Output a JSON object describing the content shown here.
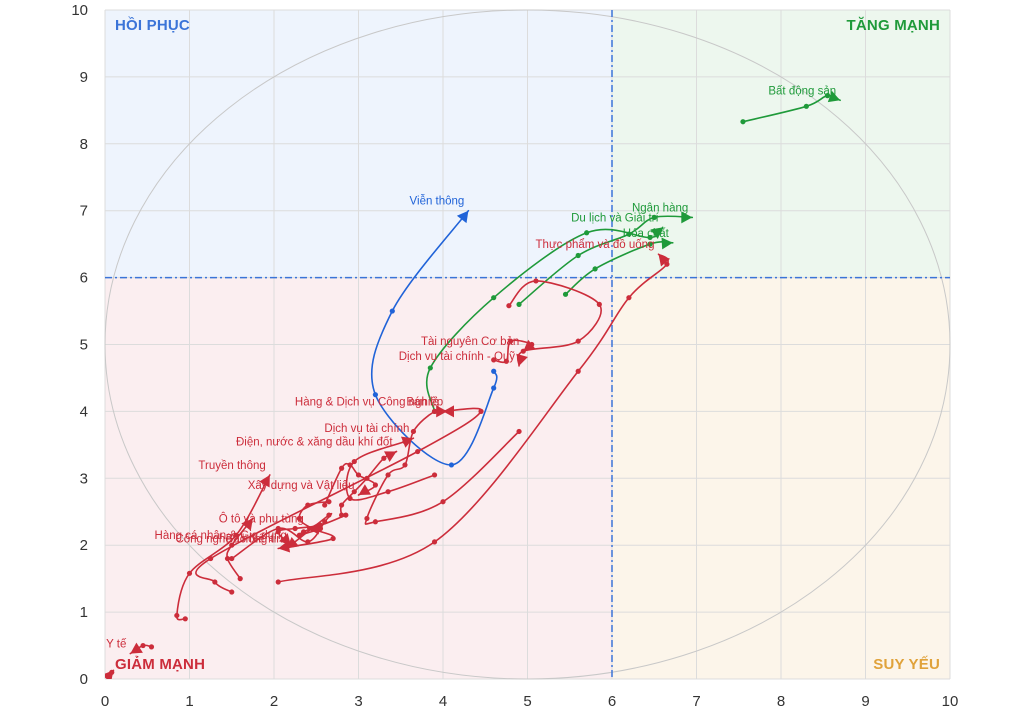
{
  "chart_data": {
    "type": "line",
    "xlim": [
      0,
      10
    ],
    "ylim": [
      0,
      10
    ],
    "x_ticks": [
      "0",
      "1",
      "2",
      "3",
      "4",
      "5",
      "6",
      "7",
      "8",
      "9",
      "10"
    ],
    "y_ticks": [
      "0",
      "1",
      "2",
      "3",
      "4",
      "5",
      "6",
      "7",
      "8",
      "9",
      "10"
    ],
    "divider_x": 6,
    "divider_y": 6,
    "grid": true,
    "quadrants": {
      "top_left": {
        "label": "HỒI PHỤC",
        "color": "#3b74d8",
        "fill": "#eef4fd"
      },
      "top_right": {
        "label": "TĂNG MẠNH",
        "color": "#1f9a3a",
        "fill": "#edf7ee"
      },
      "bottom_left": {
        "label": "GIẢM MẠNH",
        "color": "#cc2d3b",
        "fill": "#fbeef0"
      },
      "bottom_right": {
        "label": "SUY YẾU",
        "color": "#e0a23a",
        "fill": "#fcf5ea"
      }
    },
    "colors": {
      "up": "#1f9a3a",
      "recovering": "#2063d8",
      "down": "#cc2d3b",
      "divider": "#3b74d8",
      "ellipse": "#c8c8c8"
    },
    "series": [
      {
        "name": "Bất động sản",
        "color": "#1f9a3a",
        "points": [
          [
            7.55,
            8.33
          ],
          [
            8.3,
            8.56
          ],
          [
            8.55,
            8.72
          ],
          [
            8.7,
            8.65
          ]
        ]
      },
      {
        "name": "Ngân hàng",
        "color": "#1f9a3a",
        "points": [
          [
            4.9,
            5.6
          ],
          [
            5.6,
            6.33
          ],
          [
            6.2,
            6.65
          ],
          [
            6.5,
            6.9
          ],
          [
            6.95,
            6.9
          ]
        ]
      },
      {
        "name": "Du lịch và Giải trí",
        "color": "#1f9a3a",
        "points": [
          [
            3.9,
            4.0
          ],
          [
            3.85,
            4.65
          ],
          [
            4.6,
            5.7
          ],
          [
            5.7,
            6.67
          ],
          [
            6.45,
            6.6
          ],
          [
            6.6,
            6.75
          ]
        ]
      },
      {
        "name": "Hóa chất",
        "color": "#1f9a3a",
        "points": [
          [
            5.45,
            5.75
          ],
          [
            5.8,
            6.13
          ],
          [
            6.45,
            6.5
          ],
          [
            6.72,
            6.52
          ]
        ]
      },
      {
        "name": "Viễn thông",
        "color": "#2063d8",
        "points": [
          [
            4.6,
            4.6
          ],
          [
            4.6,
            4.35
          ],
          [
            4.1,
            3.2
          ],
          [
            3.2,
            4.25
          ],
          [
            3.4,
            5.5
          ],
          [
            4.3,
            7.0
          ]
        ]
      },
      {
        "name": "Dịch vụ tài chính - Quỹ",
        "color": "#cc2d3b",
        "points": [
          [
            4.78,
            5.58
          ],
          [
            5.1,
            5.95
          ],
          [
            5.85,
            5.6
          ],
          [
            5.6,
            5.05
          ],
          [
            4.95,
            4.9
          ],
          [
            4.9,
            4.68
          ]
        ]
      },
      {
        "name": "Tài nguyên Cơ bản",
        "color": "#cc2d3b",
        "points": [
          [
            4.6,
            4.77
          ],
          [
            4.75,
            4.75
          ],
          [
            4.8,
            5.05
          ],
          [
            5.05,
            5.0
          ],
          [
            4.95,
            4.9
          ]
        ]
      },
      {
        "name": "Thực phẩm và đồ uống",
        "color": "#cc2d3b",
        "points": [
          [
            2.05,
            1.45
          ],
          [
            3.9,
            2.05
          ],
          [
            5.6,
            4.6
          ],
          [
            6.2,
            5.7
          ],
          [
            6.65,
            6.2
          ],
          [
            6.55,
            6.35
          ]
        ]
      },
      {
        "name": "Bán lẻ",
        "color": "#cc2d3b",
        "points": [
          [
            1.5,
            1.3
          ],
          [
            1.3,
            1.45
          ],
          [
            1.25,
            1.8
          ],
          [
            3.7,
            3.4
          ],
          [
            4.45,
            4.0
          ],
          [
            4.0,
            4.0
          ]
        ]
      },
      {
        "name": "Hàng & Dịch vụ Công nghiệp",
        "color": "#cc2d3b",
        "points": [
          [
            4.9,
            3.7
          ],
          [
            4.0,
            2.65
          ],
          [
            3.2,
            2.35
          ],
          [
            3.1,
            2.4
          ],
          [
            3.35,
            3.05
          ],
          [
            3.55,
            3.2
          ],
          [
            3.65,
            3.7
          ],
          [
            3.9,
            4.0
          ],
          [
            4.05,
            4.0
          ]
        ]
      },
      {
        "name": "Dịch vụ tài chính",
        "color": "#cc2d3b",
        "points": [
          [
            3.9,
            3.05
          ],
          [
            3.35,
            2.8
          ],
          [
            2.9,
            2.7
          ],
          [
            2.95,
            3.25
          ],
          [
            3.55,
            3.55
          ],
          [
            3.65,
            3.6
          ]
        ]
      },
      {
        "name": "Điện, nước & xăng dầu khí đốt",
        "color": "#cc2d3b",
        "points": [
          [
            2.8,
            2.45
          ],
          [
            2.8,
            2.6
          ],
          [
            2.95,
            2.8
          ],
          [
            3.1,
            3.0
          ],
          [
            3.3,
            3.3
          ],
          [
            3.45,
            3.4
          ]
        ]
      },
      {
        "name": "Xây dựng và Vật liệu",
        "color": "#cc2d3b",
        "points": [
          [
            2.6,
            2.6
          ],
          [
            2.8,
            3.15
          ],
          [
            2.9,
            3.2
          ],
          [
            3.0,
            3.05
          ],
          [
            3.2,
            2.9
          ],
          [
            3.0,
            2.75
          ]
        ]
      },
      {
        "name": "Bảo hiểm",
        "color": "#cc2d3b",
        "points": [
          [
            2.65,
            2.65
          ],
          [
            2.4,
            2.6
          ],
          [
            2.3,
            2.4
          ],
          [
            2.45,
            2.25
          ],
          [
            2.7,
            2.1
          ],
          [
            2.05,
            1.95
          ]
        ]
      },
      {
        "name": "Công nghệ Thông tin",
        "color": "#cc2d3b",
        "points": [
          [
            1.5,
            1.8
          ],
          [
            2.05,
            2.25
          ],
          [
            2.4,
            2.05
          ],
          [
            2.6,
            2.35
          ],
          [
            2.65,
            2.45
          ],
          [
            2.15,
            1.95
          ]
        ]
      },
      {
        "name": "Ô tô và phụ tùng",
        "color": "#cc2d3b",
        "points": [
          [
            2.45,
            2.25
          ],
          [
            2.35,
            2.2
          ],
          [
            2.3,
            2.15
          ],
          [
            2.55,
            2.25
          ],
          [
            2.4,
            2.25
          ]
        ]
      },
      {
        "name": "Hàng cá nhân & Gia dụng",
        "color": "#cc2d3b",
        "points": [
          [
            2.85,
            2.45
          ],
          [
            2.55,
            2.3
          ],
          [
            2.25,
            2.25
          ],
          [
            2.05,
            2.2
          ],
          [
            2.2,
            2.0
          ]
        ]
      },
      {
        "name": "Truyền thông",
        "color": "#cc2d3b",
        "points": [
          [
            0.95,
            0.9
          ],
          [
            0.85,
            0.95
          ],
          [
            1.0,
            1.58
          ],
          [
            1.55,
            2.15
          ],
          [
            1.95,
            3.05
          ]
        ]
      },
      {
        "name": "Y tế",
        "color": "#cc2d3b",
        "points": [
          [
            0.55,
            0.48
          ],
          [
            0.45,
            0.5
          ],
          [
            0.3,
            0.38
          ]
        ]
      },
      {
        "name": "",
        "color": "#cc2d3b",
        "points": [
          [
            0.05,
            0.05
          ],
          [
            0.08,
            0.1
          ],
          [
            0.1,
            0.13
          ]
        ]
      },
      {
        "name": "",
        "color": "#cc2d3b",
        "points": [
          [
            1.6,
            1.5
          ],
          [
            1.45,
            1.8
          ],
          [
            1.5,
            2.0
          ],
          [
            1.75,
            2.4
          ]
        ]
      }
    ]
  }
}
